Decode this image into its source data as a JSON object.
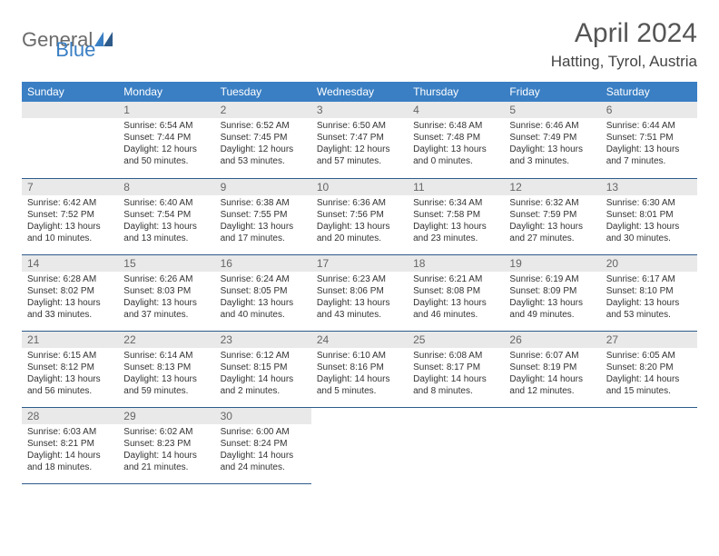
{
  "brand": {
    "part1": "General",
    "part2": "Blue"
  },
  "title": "April 2024",
  "location": "Hatting, Tyrol, Austria",
  "colors": {
    "header_bg": "#3a7fc4",
    "header_fg": "#ffffff",
    "daynum_bg": "#e9e9e9",
    "daynum_fg": "#666666",
    "divider": "#2e5b8a",
    "body_text": "#333333",
    "title_fg": "#555555"
  },
  "weekdays": [
    "Sunday",
    "Monday",
    "Tuesday",
    "Wednesday",
    "Thursday",
    "Friday",
    "Saturday"
  ],
  "weeks": [
    [
      null,
      {
        "n": "1",
        "sr": "Sunrise: 6:54 AM",
        "ss": "Sunset: 7:44 PM",
        "d1": "Daylight: 12 hours",
        "d2": "and 50 minutes."
      },
      {
        "n": "2",
        "sr": "Sunrise: 6:52 AM",
        "ss": "Sunset: 7:45 PM",
        "d1": "Daylight: 12 hours",
        "d2": "and 53 minutes."
      },
      {
        "n": "3",
        "sr": "Sunrise: 6:50 AM",
        "ss": "Sunset: 7:47 PM",
        "d1": "Daylight: 12 hours",
        "d2": "and 57 minutes."
      },
      {
        "n": "4",
        "sr": "Sunrise: 6:48 AM",
        "ss": "Sunset: 7:48 PM",
        "d1": "Daylight: 13 hours",
        "d2": "and 0 minutes."
      },
      {
        "n": "5",
        "sr": "Sunrise: 6:46 AM",
        "ss": "Sunset: 7:49 PM",
        "d1": "Daylight: 13 hours",
        "d2": "and 3 minutes."
      },
      {
        "n": "6",
        "sr": "Sunrise: 6:44 AM",
        "ss": "Sunset: 7:51 PM",
        "d1": "Daylight: 13 hours",
        "d2": "and 7 minutes."
      }
    ],
    [
      {
        "n": "7",
        "sr": "Sunrise: 6:42 AM",
        "ss": "Sunset: 7:52 PM",
        "d1": "Daylight: 13 hours",
        "d2": "and 10 minutes."
      },
      {
        "n": "8",
        "sr": "Sunrise: 6:40 AM",
        "ss": "Sunset: 7:54 PM",
        "d1": "Daylight: 13 hours",
        "d2": "and 13 minutes."
      },
      {
        "n": "9",
        "sr": "Sunrise: 6:38 AM",
        "ss": "Sunset: 7:55 PM",
        "d1": "Daylight: 13 hours",
        "d2": "and 17 minutes."
      },
      {
        "n": "10",
        "sr": "Sunrise: 6:36 AM",
        "ss": "Sunset: 7:56 PM",
        "d1": "Daylight: 13 hours",
        "d2": "and 20 minutes."
      },
      {
        "n": "11",
        "sr": "Sunrise: 6:34 AM",
        "ss": "Sunset: 7:58 PM",
        "d1": "Daylight: 13 hours",
        "d2": "and 23 minutes."
      },
      {
        "n": "12",
        "sr": "Sunrise: 6:32 AM",
        "ss": "Sunset: 7:59 PM",
        "d1": "Daylight: 13 hours",
        "d2": "and 27 minutes."
      },
      {
        "n": "13",
        "sr": "Sunrise: 6:30 AM",
        "ss": "Sunset: 8:01 PM",
        "d1": "Daylight: 13 hours",
        "d2": "and 30 minutes."
      }
    ],
    [
      {
        "n": "14",
        "sr": "Sunrise: 6:28 AM",
        "ss": "Sunset: 8:02 PM",
        "d1": "Daylight: 13 hours",
        "d2": "and 33 minutes."
      },
      {
        "n": "15",
        "sr": "Sunrise: 6:26 AM",
        "ss": "Sunset: 8:03 PM",
        "d1": "Daylight: 13 hours",
        "d2": "and 37 minutes."
      },
      {
        "n": "16",
        "sr": "Sunrise: 6:24 AM",
        "ss": "Sunset: 8:05 PM",
        "d1": "Daylight: 13 hours",
        "d2": "and 40 minutes."
      },
      {
        "n": "17",
        "sr": "Sunrise: 6:23 AM",
        "ss": "Sunset: 8:06 PM",
        "d1": "Daylight: 13 hours",
        "d2": "and 43 minutes."
      },
      {
        "n": "18",
        "sr": "Sunrise: 6:21 AM",
        "ss": "Sunset: 8:08 PM",
        "d1": "Daylight: 13 hours",
        "d2": "and 46 minutes."
      },
      {
        "n": "19",
        "sr": "Sunrise: 6:19 AM",
        "ss": "Sunset: 8:09 PM",
        "d1": "Daylight: 13 hours",
        "d2": "and 49 minutes."
      },
      {
        "n": "20",
        "sr": "Sunrise: 6:17 AM",
        "ss": "Sunset: 8:10 PM",
        "d1": "Daylight: 13 hours",
        "d2": "and 53 minutes."
      }
    ],
    [
      {
        "n": "21",
        "sr": "Sunrise: 6:15 AM",
        "ss": "Sunset: 8:12 PM",
        "d1": "Daylight: 13 hours",
        "d2": "and 56 minutes."
      },
      {
        "n": "22",
        "sr": "Sunrise: 6:14 AM",
        "ss": "Sunset: 8:13 PM",
        "d1": "Daylight: 13 hours",
        "d2": "and 59 minutes."
      },
      {
        "n": "23",
        "sr": "Sunrise: 6:12 AM",
        "ss": "Sunset: 8:15 PM",
        "d1": "Daylight: 14 hours",
        "d2": "and 2 minutes."
      },
      {
        "n": "24",
        "sr": "Sunrise: 6:10 AM",
        "ss": "Sunset: 8:16 PM",
        "d1": "Daylight: 14 hours",
        "d2": "and 5 minutes."
      },
      {
        "n": "25",
        "sr": "Sunrise: 6:08 AM",
        "ss": "Sunset: 8:17 PM",
        "d1": "Daylight: 14 hours",
        "d2": "and 8 minutes."
      },
      {
        "n": "26",
        "sr": "Sunrise: 6:07 AM",
        "ss": "Sunset: 8:19 PM",
        "d1": "Daylight: 14 hours",
        "d2": "and 12 minutes."
      },
      {
        "n": "27",
        "sr": "Sunrise: 6:05 AM",
        "ss": "Sunset: 8:20 PM",
        "d1": "Daylight: 14 hours",
        "d2": "and 15 minutes."
      }
    ],
    [
      {
        "n": "28",
        "sr": "Sunrise: 6:03 AM",
        "ss": "Sunset: 8:21 PM",
        "d1": "Daylight: 14 hours",
        "d2": "and 18 minutes."
      },
      {
        "n": "29",
        "sr": "Sunrise: 6:02 AM",
        "ss": "Sunset: 8:23 PM",
        "d1": "Daylight: 14 hours",
        "d2": "and 21 minutes."
      },
      {
        "n": "30",
        "sr": "Sunrise: 6:00 AM",
        "ss": "Sunset: 8:24 PM",
        "d1": "Daylight: 14 hours",
        "d2": "and 24 minutes."
      },
      null,
      null,
      null,
      null
    ]
  ]
}
